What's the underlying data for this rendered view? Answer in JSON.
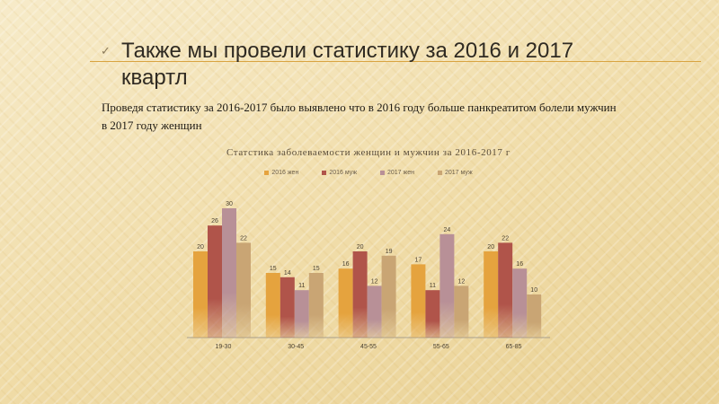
{
  "slide": {
    "bullet_icon": "check-bullet-icon",
    "title": "Также мы провели статистику за 2016 и 2017 квартл",
    "body": "Проведя статистику за 2016-2017 было выявлено что в 2016 году больше панкреатитом болели мужчин в 2017 году женщин"
  },
  "chart_data": {
    "type": "bar",
    "title": "Статстика заболеваемости женщин и мужчин за 2016-2017 г",
    "xlabel": "",
    "ylabel": "",
    "categories": [
      "19-30",
      "30-45",
      "45-55",
      "55-65",
      "65-85"
    ],
    "series": [
      {
        "name": "2016 жен",
        "values": [
          20,
          15,
          16,
          17,
          20
        ],
        "color": "#e5a33e"
      },
      {
        "name": "2016 муж",
        "values": [
          26,
          14,
          20,
          11,
          22
        ],
        "color": "#b0544a"
      },
      {
        "name": "2017 жен",
        "values": [
          30,
          11,
          12,
          24,
          16
        ],
        "color": "#b89097"
      },
      {
        "name": "2017 муж",
        "values": [
          22,
          15,
          19,
          12,
          10
        ],
        "color": "#c9a574"
      }
    ],
    "ylim": [
      0,
      30
    ],
    "grid": false,
    "legend_position": "top",
    "data_labels": true
  }
}
